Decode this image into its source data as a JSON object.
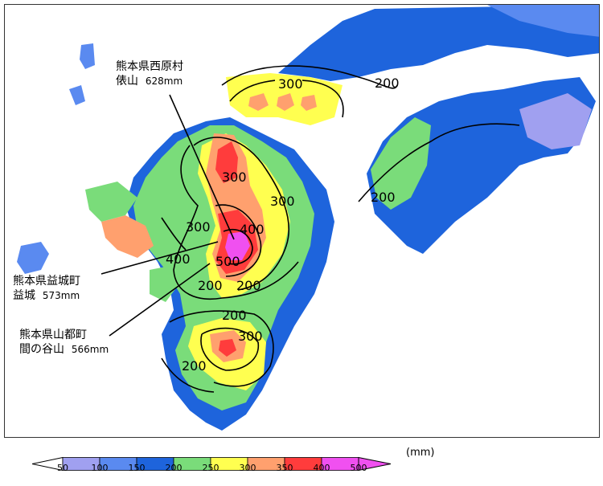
{
  "map": {
    "callouts": [
      {
        "place": "熊本県西原村",
        "station": "俵山",
        "value": "628mm"
      },
      {
        "place": "熊本県益城町",
        "station": "益城",
        "value": "573mm"
      },
      {
        "place": "熊本県山都町",
        "station": "間の谷山",
        "value": "566mm"
      }
    ],
    "contour_labels": [
      "300",
      "200",
      "300",
      "400",
      "500",
      "200",
      "200",
      "300",
      "200",
      "300",
      "400",
      "300",
      "200",
      "200"
    ]
  },
  "legend": {
    "unit": "(mm)",
    "ticks": [
      "50",
      "100",
      "150",
      "200",
      "250",
      "300",
      "350",
      "400",
      "500"
    ],
    "colors": [
      "#ffffff",
      "#a0a0f0",
      "#5a8af0",
      "#1e64dc",
      "#7adc7a",
      "#ffff50",
      "#ffa06e",
      "#ff3c3c",
      "#f050f0"
    ]
  }
}
